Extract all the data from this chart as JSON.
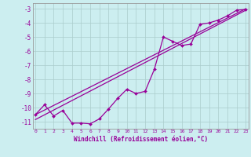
{
  "bg_color": "#cceef0",
  "line_color": "#990099",
  "grid_color": "#aacccc",
  "xlabel": "Windchill (Refroidissement éolien,°C)",
  "xlim": [
    -0.3,
    23.3
  ],
  "ylim": [
    -11.5,
    -2.6
  ],
  "yticks": [
    -11,
    -10,
    -9,
    -8,
    -7,
    -6,
    -5,
    -4,
    -3
  ],
  "xticks": [
    0,
    1,
    2,
    3,
    4,
    5,
    6,
    7,
    8,
    9,
    10,
    11,
    12,
    13,
    14,
    15,
    16,
    17,
    18,
    19,
    20,
    21,
    22,
    23
  ],
  "data_x": [
    0,
    1,
    2,
    3,
    4,
    5,
    6,
    7,
    8,
    9,
    10,
    11,
    12,
    13,
    14,
    15,
    16,
    17,
    18,
    19,
    20,
    21,
    22,
    23
  ],
  "data_y": [
    -10.5,
    -9.8,
    -10.6,
    -10.2,
    -11.1,
    -11.1,
    -11.15,
    -10.8,
    -10.1,
    -9.35,
    -8.7,
    -9.0,
    -8.85,
    -7.3,
    -5.0,
    -5.3,
    -5.6,
    -5.5,
    -4.1,
    -4.0,
    -3.8,
    -3.5,
    -3.1,
    -3.05
  ],
  "reg1_x0": 0,
  "reg1_y0": -10.5,
  "reg1_x1": 23,
  "reg1_y1": -3.0,
  "reg2_x0": 0,
  "reg2_y0": -10.85,
  "reg2_x1": 23,
  "reg2_y1": -3.1
}
